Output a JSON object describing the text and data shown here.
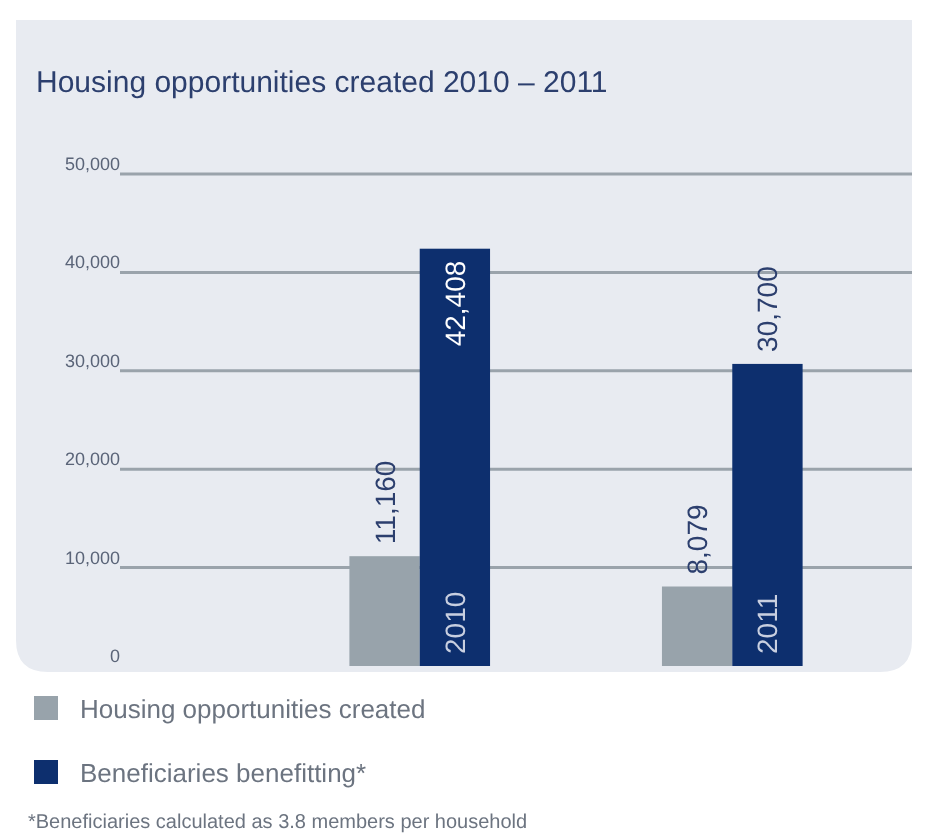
{
  "chart_data": {
    "type": "bar",
    "title": "Housing opportunities created 2010 – 2011",
    "categories": [
      "2010",
      "2011"
    ],
    "series": [
      {
        "name": "Housing opportunities created",
        "color": "#98a3ab",
        "values": [
          11160,
          8079
        ],
        "value_labels": [
          "11,160",
          "8,079"
        ]
      },
      {
        "name": "Beneficiaries benefitting*",
        "color": "#0d2f6e",
        "values": [
          42408,
          30700
        ],
        "value_labels": [
          "42,408",
          "30,700"
        ]
      }
    ],
    "ylim": [
      0,
      50000
    ],
    "yticks": [
      0,
      {
        "value": 10000,
        "label": "10,000"
      },
      {
        "value": 20000,
        "label": "20,000"
      },
      {
        "value": 30000,
        "label": "30,000"
      },
      {
        "value": 40000,
        "label": "40,000"
      },
      {
        "value": 50000,
        "label": "50,000"
      }
    ],
    "grid": "y",
    "legend": "bottom",
    "annotations": [
      "*Beneficiaries calculated as 3.8 members per household"
    ]
  }
}
